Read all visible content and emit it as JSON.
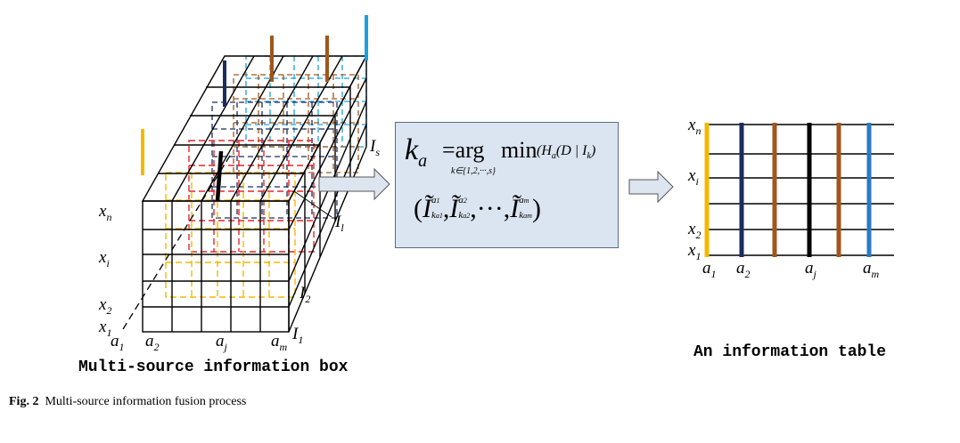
{
  "box": {
    "label_xn": "x",
    "sub_xn": "n",
    "label_xi": "x",
    "sub_xi": "i",
    "label_x2": "x",
    "sub_x2": "2",
    "label_x1": "x",
    "sub_x1": "1",
    "label_a1": "a",
    "sub_a1": "1",
    "label_a2": "a",
    "sub_a2": "2",
    "label_aj": "a",
    "sub_aj": "j",
    "label_am": "a",
    "sub_am": "m",
    "label_I1_bottom": "I",
    "sub_I1_bottom": "1",
    "label_I2": "I",
    "sub_I2": "2",
    "label_Il": "I",
    "sub_Il": "l",
    "label_Is": "I",
    "sub_Is": "s",
    "title": "Multi-source information box"
  },
  "formula": {
    "line1_k": "k",
    "line1_ksub": "a",
    "line1_eq": "=",
    "line1_arg": "arg",
    "line1_min": "min",
    "line1_rest": "(H",
    "line1_hsub": "a",
    "line1_tail": "(D | I",
    "line1_ksub2": "k",
    "line1_close": ")",
    "line1_under": "k∈{1,2,···,s}",
    "line2_open": "(",
    "line2_I": "Ĩ",
    "line2_sup1": "a",
    "line2_sup1_sub": "1",
    "line2_sub1": "k",
    "line2_sub1_sub": "a1",
    "line2_sup2": "a",
    "line2_sup2_sub": "2",
    "line2_sub2": "k",
    "line2_sub2_sub": "a2",
    "line2_dots": ",···,",
    "line2_supm": "a",
    "line2_supm_sub": "m",
    "line2_subm": "k",
    "line2_subm_sub": "am",
    "line2_close": ")"
  },
  "table": {
    "label_xn": "x",
    "sub_xn": "n",
    "label_xi": "x",
    "sub_xi": "i",
    "label_x2": "x",
    "sub_x2": "2",
    "label_x1": "x",
    "sub_x1": "1",
    "label_a1": "a",
    "sub_a1": "1",
    "label_a2": "a",
    "sub_a2": "2",
    "label_aj": "a",
    "sub_aj": "j",
    "label_am": "a",
    "sub_am": "m",
    "title": "An information table"
  },
  "caption": {
    "fig": "Fig. 2",
    "text": "Multi-source information fusion process"
  },
  "colors": {
    "yellow": "#f5b800",
    "red": "#e8242a",
    "navy": "#1b2d5e",
    "brown": "#a0561c",
    "cyan": "#1aa0dc",
    "black": "#000000",
    "formula_fill": "#dbe5f1",
    "arrow_fill": "#dde6f0"
  }
}
